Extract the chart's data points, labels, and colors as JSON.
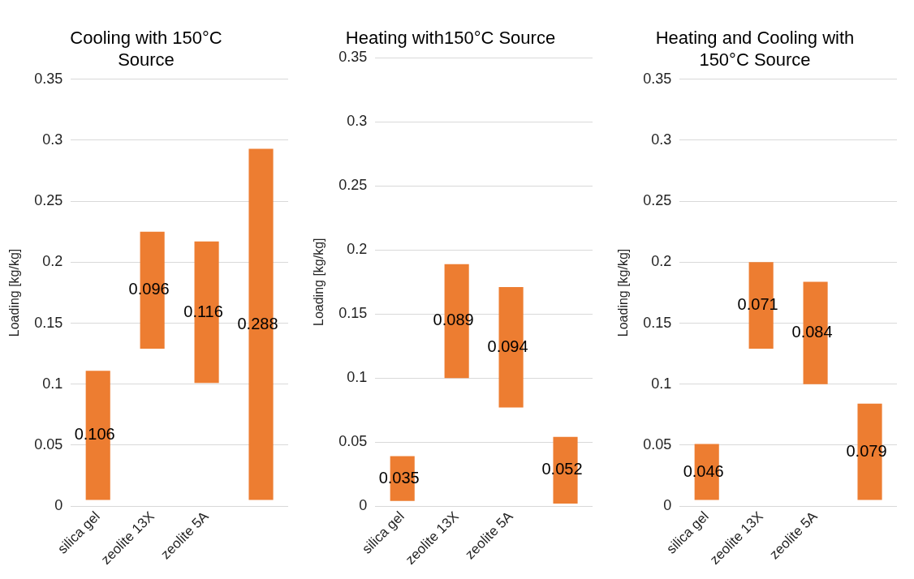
{
  "chart_data": [
    {
      "type": "bar",
      "title": "Cooling with 150°C Source",
      "ylabel": "Loading [kg/kg]",
      "categories": [
        "silica gel",
        "zeolite 13X",
        "zeolite 5A",
        null
      ],
      "values": [
        0.106,
        0.096,
        0.116,
        0.288
      ],
      "base": [
        0.005,
        0.129,
        0.101,
        0.005
      ],
      "color": "#ed7d31",
      "ylim": [
        0,
        0.35
      ],
      "yticks": [
        0,
        0.05,
        0.1,
        0.15,
        0.2,
        0.25,
        0.3,
        0.35
      ],
      "grid": "y",
      "data_labels": true
    },
    {
      "type": "bar",
      "title": "Heating with150°C Source",
      "ylabel": "Loading [kg/kg]",
      "categories": [
        "silica gel",
        "zeolite 13X",
        "zeolite 5A",
        null
      ],
      "values": [
        0.035,
        0.089,
        0.094,
        0.052
      ],
      "base": [
        0.004,
        0.1,
        0.077,
        0.002
      ],
      "color": "#ed7d31",
      "ylim": [
        0,
        0.35
      ],
      "yticks": [
        0,
        0.05,
        0.1,
        0.15,
        0.2,
        0.25,
        0.3,
        0.35
      ],
      "grid": "y",
      "data_labels": true
    },
    {
      "type": "bar",
      "title": "Heating and Cooling with 150°C Source",
      "ylabel": "Loading [kg/kg]",
      "categories": [
        "silica gel",
        "zeolite 13X",
        "zeolite 5A",
        null
      ],
      "values": [
        0.046,
        0.071,
        0.084,
        0.079
      ],
      "base": [
        0.005,
        0.129,
        0.1,
        0.005
      ],
      "color": "#ed7d31",
      "ylim": [
        0,
        0.35
      ],
      "yticks": [
        0,
        0.05,
        0.1,
        0.15,
        0.2,
        0.25,
        0.3,
        0.35
      ],
      "grid": "y",
      "data_labels": true
    }
  ]
}
